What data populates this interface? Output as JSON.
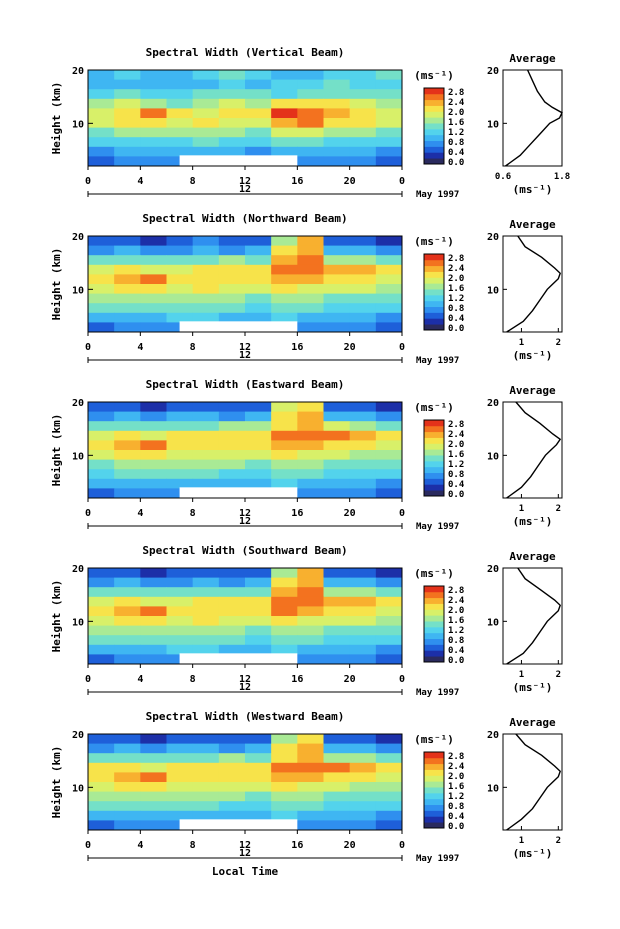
{
  "figure": {
    "date_label": "May 1997",
    "x_axis_title": "Local Time",
    "y_axis_title": "Height (km)",
    "colorbar_unit": "(ms⁻¹)",
    "colorbar_ticks": [
      "2.8",
      "2.4",
      "2.0",
      "1.6",
      "1.2",
      "0.8",
      "0.4",
      "0.0"
    ],
    "profile_title": "Average",
    "profile_unit": "(ms⁻¹)",
    "day_marker": "12"
  },
  "colors": {
    "colormap": [
      "#2a2a5e",
      "#1c2fa8",
      "#1e5fd9",
      "#2f8fef",
      "#3fb6f2",
      "#53d3ec",
      "#74e0c8",
      "#a9ea95",
      "#d8f069",
      "#f7e34a",
      "#f8b02f",
      "#f3721f",
      "#e4321a"
    ],
    "no_data": "#ffffff"
  },
  "chart_data": [
    {
      "type": "heatmap",
      "title": "Spectral Width (Vertical Beam)",
      "xlabel": "",
      "ylabel": "Height (km)",
      "x_ticks": [
        "0",
        "4",
        "8",
        "12",
        "16",
        "20",
        "0"
      ],
      "y_ticks": [
        "20",
        "10"
      ],
      "xlim": [
        0,
        24
      ],
      "ylim": [
        2,
        20
      ],
      "value_range": [
        0.0,
        3.0
      ],
      "rows_top_to_bottom": [
        [
          1.1,
          1.2,
          1.0,
          1.1,
          1.3,
          1.5,
          1.2,
          1.0,
          1.1,
          1.2,
          1.3,
          1.4
        ],
        [
          1.0,
          1.1,
          1.0,
          1.0,
          1.1,
          1.2,
          1.1,
          1.2,
          1.3,
          1.4,
          1.3,
          1.2
        ],
        [
          1.3,
          1.4,
          1.2,
          1.3,
          1.4,
          1.5,
          1.4,
          1.3,
          1.5,
          1.6,
          1.5,
          1.4
        ],
        [
          1.8,
          1.9,
          1.7,
          1.6,
          1.8,
          1.9,
          1.8,
          2.2,
          2.3,
          2.1,
          1.9,
          1.8
        ],
        [
          2.0,
          2.2,
          2.6,
          2.1,
          2.0,
          2.1,
          2.2,
          2.8,
          2.7,
          2.4,
          2.2,
          2.0
        ],
        [
          1.9,
          2.1,
          2.3,
          2.0,
          2.1,
          2.0,
          2.0,
          2.5,
          2.6,
          2.3,
          2.1,
          1.9
        ],
        [
          1.6,
          1.7,
          1.8,
          1.7,
          1.8,
          1.7,
          1.6,
          1.9,
          1.9,
          1.8,
          1.7,
          1.6
        ],
        [
          1.2,
          1.3,
          1.2,
          1.3,
          1.4,
          1.3,
          1.2,
          1.5,
          1.4,
          1.3,
          1.3,
          1.2
        ],
        [
          0.9,
          1.0,
          1.0,
          1.1,
          1.1,
          1.0,
          0.9,
          1.1,
          1.0,
          1.0,
          1.0,
          0.9
        ],
        [
          0.6,
          0.7,
          0.8,
          0.8,
          0.8,
          0.7,
          0.6,
          0.9,
          0.8,
          0.7,
          0.7,
          0.6
        ]
      ],
      "gap": {
        "x_from": 7,
        "x_to": 16,
        "y_from": 2,
        "y_to": 4
      },
      "profile": {
        "xlabel": "(ms⁻¹)",
        "x_ticks": [
          "0.6",
          "1.8"
        ],
        "xlim": [
          0.6,
          1.8
        ],
        "heights": [
          2,
          4,
          6,
          8,
          10,
          11,
          12,
          13,
          14,
          16,
          18,
          20
        ],
        "values": [
          0.65,
          0.95,
          1.15,
          1.35,
          1.55,
          1.75,
          1.8,
          1.6,
          1.45,
          1.3,
          1.2,
          1.1
        ]
      }
    },
    {
      "type": "heatmap",
      "title": "Spectral Width (Northward Beam)",
      "xlabel": "",
      "ylabel": "Height (km)",
      "x_ticks": [
        "0",
        "4",
        "8",
        "12",
        "16",
        "20",
        "0"
      ],
      "y_ticks": [
        "20",
        "10"
      ],
      "xlim": [
        0,
        24
      ],
      "ylim": [
        2,
        20
      ],
      "value_range": [
        0.0,
        3.0
      ],
      "rows_top_to_bottom": [
        [
          0.5,
          0.6,
          0.4,
          0.6,
          0.7,
          0.5,
          0.5,
          1.8,
          2.4,
          0.6,
          0.5,
          0.4
        ],
        [
          0.9,
          1.0,
          0.8,
          0.9,
          1.0,
          0.9,
          1.0,
          2.2,
          2.5,
          1.1,
          1.0,
          0.9
        ],
        [
          1.5,
          1.6,
          1.4,
          1.5,
          1.6,
          1.7,
          1.6,
          2.4,
          2.6,
          1.8,
          1.7,
          1.6
        ],
        [
          2.0,
          2.1,
          1.9,
          2.0,
          2.1,
          2.2,
          2.3,
          2.6,
          2.7,
          2.5,
          2.4,
          2.2
        ],
        [
          2.2,
          2.4,
          2.7,
          2.2,
          2.1,
          2.2,
          2.2,
          2.5,
          2.4,
          2.3,
          2.2,
          2.0
        ],
        [
          2.0,
          2.1,
          2.2,
          2.0,
          2.1,
          2.0,
          1.9,
          2.1,
          2.0,
          1.9,
          1.9,
          1.8
        ],
        [
          1.7,
          1.8,
          1.8,
          1.7,
          1.8,
          1.7,
          1.6,
          1.8,
          1.7,
          1.6,
          1.6,
          1.5
        ],
        [
          1.4,
          1.5,
          1.4,
          1.4,
          1.5,
          1.4,
          1.3,
          1.5,
          1.4,
          1.3,
          1.3,
          1.2
        ],
        [
          1.0,
          1.1,
          1.1,
          1.2,
          1.2,
          1.1,
          1.0,
          1.2,
          1.1,
          1.0,
          1.0,
          0.9
        ],
        [
          0.6,
          0.7,
          0.8,
          0.8,
          0.8,
          0.7,
          0.6,
          0.9,
          0.8,
          0.7,
          0.7,
          0.6
        ]
      ],
      "gap": {
        "x_from": 7,
        "x_to": 16,
        "y_from": 2,
        "y_to": 4
      },
      "profile": {
        "xlabel": "(ms⁻¹)",
        "x_ticks": [
          "1",
          "2"
        ],
        "xlim": [
          0.5,
          2.1
        ],
        "heights": [
          2,
          4,
          6,
          8,
          10,
          11,
          12,
          13,
          14,
          16,
          18,
          20
        ],
        "values": [
          0.6,
          1.05,
          1.3,
          1.5,
          1.7,
          1.85,
          2.0,
          2.05,
          1.9,
          1.55,
          1.1,
          0.9
        ]
      }
    },
    {
      "type": "heatmap",
      "title": "Spectral Width (Eastward Beam)",
      "xlabel": "",
      "ylabel": "Height (km)",
      "x_ticks": [
        "0",
        "4",
        "8",
        "12",
        "16",
        "20",
        "0"
      ],
      "y_ticks": [
        "20",
        "10"
      ],
      "xlim": [
        0,
        24
      ],
      "ylim": [
        2,
        20
      ],
      "value_range": [
        0.0,
        3.0
      ],
      "rows_top_to_bottom": [
        [
          0.5,
          0.5,
          0.4,
          0.6,
          0.6,
          0.5,
          0.5,
          1.9,
          2.3,
          0.6,
          0.5,
          0.4
        ],
        [
          0.9,
          1.0,
          0.9,
          1.0,
          1.0,
          0.9,
          1.0,
          2.1,
          2.4,
          1.1,
          1.0,
          0.9
        ],
        [
          1.5,
          1.6,
          1.5,
          1.5,
          1.6,
          1.7,
          1.7,
          2.3,
          2.5,
          1.9,
          1.8,
          1.6
        ],
        [
          2.0,
          2.1,
          2.0,
          2.1,
          2.2,
          2.2,
          2.3,
          2.6,
          2.7,
          2.6,
          2.4,
          2.2
        ],
        [
          2.1,
          2.4,
          2.6,
          2.2,
          2.1,
          2.2,
          2.2,
          2.5,
          2.4,
          2.3,
          2.2,
          2.0
        ],
        [
          1.9,
          2.1,
          2.2,
          2.0,
          2.0,
          2.0,
          1.9,
          2.1,
          2.0,
          1.9,
          1.8,
          1.8
        ],
        [
          1.6,
          1.7,
          1.8,
          1.7,
          1.7,
          1.7,
          1.6,
          1.8,
          1.7,
          1.6,
          1.6,
          1.5
        ],
        [
          1.3,
          1.4,
          1.4,
          1.4,
          1.4,
          1.3,
          1.3,
          1.5,
          1.4,
          1.3,
          1.3,
          1.2
        ],
        [
          1.0,
          1.1,
          1.1,
          1.1,
          1.1,
          1.1,
          1.0,
          1.2,
          1.1,
          1.0,
          1.0,
          0.9
        ],
        [
          0.6,
          0.7,
          0.8,
          0.8,
          0.8,
          0.7,
          0.6,
          0.9,
          0.8,
          0.7,
          0.7,
          0.6
        ]
      ],
      "gap": {
        "x_from": 7,
        "x_to": 16,
        "y_from": 2,
        "y_to": 4
      },
      "profile": {
        "xlabel": "(ms⁻¹)",
        "x_ticks": [
          "1",
          "2"
        ],
        "xlim": [
          0.5,
          2.1
        ],
        "heights": [
          2,
          4,
          6,
          8,
          10,
          11,
          12,
          13,
          14,
          16,
          18,
          20
        ],
        "values": [
          0.6,
          1.0,
          1.25,
          1.45,
          1.65,
          1.8,
          1.95,
          2.05,
          1.85,
          1.5,
          1.1,
          0.85
        ]
      }
    },
    {
      "type": "heatmap",
      "title": "Spectral Width (Southward Beam)",
      "xlabel": "",
      "ylabel": "Height (km)",
      "x_ticks": [
        "0",
        "4",
        "8",
        "12",
        "16",
        "20",
        "0"
      ],
      "y_ticks": [
        "20",
        "10"
      ],
      "xlim": [
        0,
        24
      ],
      "ylim": [
        2,
        20
      ],
      "value_range": [
        0.0,
        3.0
      ],
      "rows_top_to_bottom": [
        [
          0.5,
          0.6,
          0.4,
          0.6,
          0.6,
          0.5,
          0.5,
          1.8,
          2.4,
          0.6,
          0.5,
          0.4
        ],
        [
          0.9,
          1.0,
          0.9,
          0.9,
          1.0,
          0.9,
          1.0,
          2.2,
          2.5,
          1.1,
          1.0,
          0.9
        ],
        [
          1.5,
          1.6,
          1.4,
          1.5,
          1.6,
          1.6,
          1.6,
          2.4,
          2.6,
          1.8,
          1.7,
          1.6
        ],
        [
          2.0,
          2.2,
          2.0,
          2.0,
          2.1,
          2.2,
          2.3,
          2.6,
          2.7,
          2.5,
          2.4,
          2.2
        ],
        [
          2.2,
          2.4,
          2.7,
          2.2,
          2.1,
          2.2,
          2.3,
          2.7,
          2.5,
          2.3,
          2.2,
          2.0
        ],
        [
          2.0,
          2.1,
          2.2,
          2.0,
          2.1,
          2.0,
          1.9,
          2.1,
          2.0,
          1.9,
          1.9,
          1.8
        ],
        [
          1.7,
          1.8,
          1.8,
          1.7,
          1.8,
          1.7,
          1.6,
          1.8,
          1.7,
          1.6,
          1.6,
          1.5
        ],
        [
          1.4,
          1.5,
          1.4,
          1.4,
          1.5,
          1.4,
          1.3,
          1.5,
          1.4,
          1.3,
          1.3,
          1.2
        ],
        [
          1.0,
          1.1,
          1.1,
          1.2,
          1.2,
          1.1,
          1.0,
          1.2,
          1.1,
          1.0,
          1.0,
          0.9
        ],
        [
          0.6,
          0.7,
          0.8,
          0.8,
          0.8,
          0.7,
          0.6,
          0.9,
          0.8,
          0.7,
          0.7,
          0.6
        ]
      ],
      "gap": {
        "x_from": 7,
        "x_to": 16,
        "y_from": 2,
        "y_to": 4
      },
      "profile": {
        "xlabel": "(ms⁻¹)",
        "x_ticks": [
          "1",
          "2"
        ],
        "xlim": [
          0.5,
          2.1
        ],
        "heights": [
          2,
          4,
          6,
          8,
          10,
          11,
          12,
          13,
          14,
          16,
          18,
          20
        ],
        "values": [
          0.6,
          1.05,
          1.3,
          1.5,
          1.7,
          1.85,
          2.0,
          2.05,
          1.9,
          1.5,
          1.1,
          0.9
        ]
      }
    },
    {
      "type": "heatmap",
      "title": "Spectral Width (Westward Beam)",
      "xlabel": "Local Time",
      "ylabel": "Height (km)",
      "x_ticks": [
        "0",
        "4",
        "8",
        "12",
        "16",
        "20",
        "0"
      ],
      "y_ticks": [
        "20",
        "10"
      ],
      "xlim": [
        0,
        24
      ],
      "ylim": [
        2,
        20
      ],
      "value_range": [
        0.0,
        3.0
      ],
      "rows_top_to_bottom": [
        [
          0.5,
          0.6,
          0.4,
          0.6,
          0.6,
          0.5,
          0.5,
          1.8,
          2.3,
          0.6,
          0.5,
          0.4
        ],
        [
          0.9,
          1.0,
          0.9,
          1.0,
          1.0,
          0.9,
          1.0,
          2.1,
          2.4,
          1.1,
          1.0,
          0.9
        ],
        [
          1.5,
          1.6,
          1.5,
          1.5,
          1.6,
          1.7,
          1.6,
          2.3,
          2.5,
          1.8,
          1.7,
          1.6
        ],
        [
          2.1,
          2.2,
          2.0,
          2.1,
          2.2,
          2.3,
          2.3,
          2.6,
          2.7,
          2.6,
          2.5,
          2.3
        ],
        [
          2.2,
          2.4,
          2.6,
          2.2,
          2.1,
          2.2,
          2.2,
          2.5,
          2.4,
          2.3,
          2.2,
          2.0
        ],
        [
          2.0,
          2.1,
          2.2,
          2.0,
          2.0,
          2.0,
          1.9,
          2.1,
          2.0,
          1.9,
          1.8,
          1.8
        ],
        [
          1.7,
          1.8,
          1.8,
          1.7,
          1.7,
          1.7,
          1.6,
          1.8,
          1.7,
          1.6,
          1.6,
          1.5
        ],
        [
          1.4,
          1.4,
          1.4,
          1.4,
          1.4,
          1.3,
          1.3,
          1.5,
          1.4,
          1.3,
          1.3,
          1.2
        ],
        [
          1.0,
          1.1,
          1.1,
          1.1,
          1.1,
          1.1,
          1.0,
          1.2,
          1.1,
          1.0,
          1.0,
          0.9
        ],
        [
          0.6,
          0.7,
          0.8,
          0.8,
          0.8,
          0.7,
          0.6,
          0.9,
          0.8,
          0.7,
          0.7,
          0.6
        ]
      ],
      "gap": {
        "x_from": 7,
        "x_to": 16,
        "y_from": 2,
        "y_to": 4
      },
      "profile": {
        "xlabel": "(ms⁻¹)",
        "x_ticks": [
          "1",
          "2"
        ],
        "xlim": [
          0.5,
          2.1
        ],
        "heights": [
          2,
          4,
          6,
          8,
          10,
          11,
          12,
          13,
          14,
          16,
          18,
          20
        ],
        "values": [
          0.6,
          1.0,
          1.3,
          1.5,
          1.7,
          1.85,
          2.0,
          2.05,
          1.9,
          1.55,
          1.1,
          0.85
        ]
      }
    }
  ]
}
